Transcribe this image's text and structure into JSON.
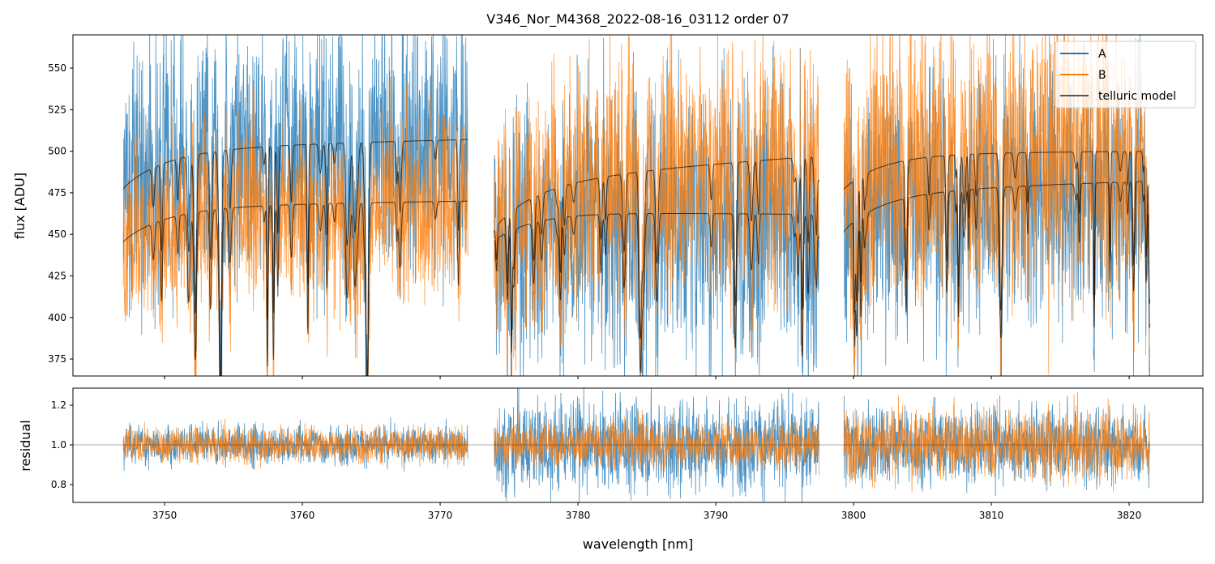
{
  "chart_data": {
    "type": "line",
    "title": "V346_Nor_M4368_2022-08-16_03112  order 07",
    "xlabel": "wavelength [nm]",
    "xlim": [
      3743.35,
      3825.35
    ],
    "xticks": [
      3750,
      3760,
      3770,
      3780,
      3790,
      3800,
      3810,
      3820
    ],
    "xtick_labels": [
      "3750",
      "3760",
      "3770",
      "3780",
      "3790",
      "3800",
      "3810",
      "3820"
    ],
    "top": {
      "ylabel": "flux [ADU]",
      "ylim": [
        364.8,
        570
      ],
      "yticks": [
        375,
        400,
        425,
        450,
        475,
        500,
        525,
        550
      ],
      "ytick_labels": [
        "375",
        "400",
        "425",
        "450",
        "475",
        "500",
        "525",
        "550"
      ]
    },
    "bottom": {
      "ylabel": "residual",
      "ylim": [
        0.71,
        1.286
      ],
      "yticks": [
        0.8,
        1.0,
        1.2
      ],
      "ytick_labels": [
        "0.8",
        "1.0",
        "1.2"
      ],
      "hline": 1.0
    },
    "legend": {
      "placement": "top-right",
      "entries": [
        "A",
        "B",
        "telluric model"
      ]
    },
    "colors": {
      "A": "#1f77b4",
      "B": "#ff7f0e",
      "telluric": "#000000"
    },
    "segments": [
      {
        "x": [
          3747.0,
          3772.0
        ],
        "A_level": [
          497,
          507
        ],
        "B_level": [
          464,
          470
        ],
        "A_noise": 0.08,
        "B_noise": 0.06,
        "resA_noise": 0.05,
        "resB_noise": 0.045
      },
      {
        "x": [
          3773.9,
          3797.5
        ],
        "A_level": [
          465,
          462
        ],
        "B_level": [
          470,
          497
        ],
        "A_noise": 0.09,
        "B_noise": 0.08,
        "resA_noise": 0.12,
        "resB_noise": 0.06
      },
      {
        "x": [
          3799.3,
          3821.5
        ],
        "A_level": [
          470,
          482
        ],
        "B_level": [
          497,
          500
        ],
        "A_noise": 0.08,
        "B_noise": 0.09,
        "resA_noise": 0.1,
        "resB_noise": 0.09
      }
    ]
  }
}
